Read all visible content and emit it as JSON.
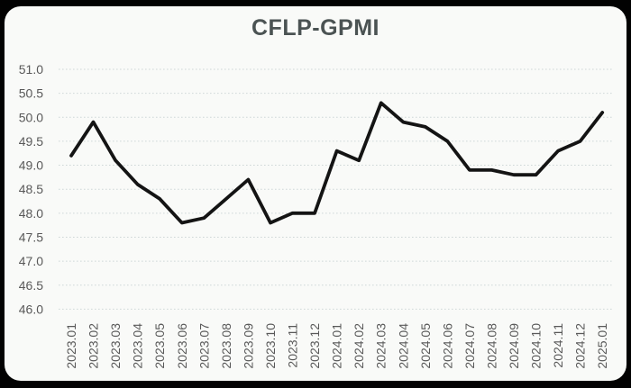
{
  "window": {
    "frame_color": "#020202",
    "panel_background": "#f9faf8"
  },
  "chart_data": {
    "type": "line",
    "title": "CFLP-GPMI",
    "x": [
      "2023.01",
      "2023.02",
      "2023.03",
      "2023.04",
      "2023.05",
      "2023.06",
      "2023.07",
      "2023.08",
      "2023.09",
      "2023.10",
      "2023.11",
      "2023.12",
      "2024.01",
      "2024.02",
      "2024.03",
      "2024.04",
      "2024.05",
      "2024.06",
      "2024.07",
      "2024.08",
      "2024.09",
      "2024.10",
      "2024.11",
      "2024.12",
      "2025.01"
    ],
    "series": [
      {
        "name": "CFLP-GPMI",
        "color": "#141414",
        "values": [
          49.2,
          49.9,
          49.1,
          48.6,
          48.3,
          47.8,
          47.9,
          48.3,
          48.7,
          47.8,
          48.0,
          48.0,
          49.3,
          49.1,
          50.3,
          49.9,
          49.8,
          49.5,
          48.9,
          48.9,
          48.8,
          48.8,
          49.3,
          49.5,
          50.1
        ]
      }
    ],
    "ylim": [
      46.0,
      51.0
    ],
    "ytick_step": 0.5,
    "y_ticks": [
      "51.0",
      "50.5",
      "50.0",
      "49.5",
      "49.0",
      "48.5",
      "48.0",
      "47.5",
      "47.0",
      "46.5",
      "46.0"
    ],
    "xlabel": "",
    "ylabel": "",
    "grid": "horizontal-dotted",
    "legend_position": "none",
    "axis_label_color": "#595959",
    "gridline_color": "#ccd6d6",
    "title_color": "#4b5353"
  }
}
